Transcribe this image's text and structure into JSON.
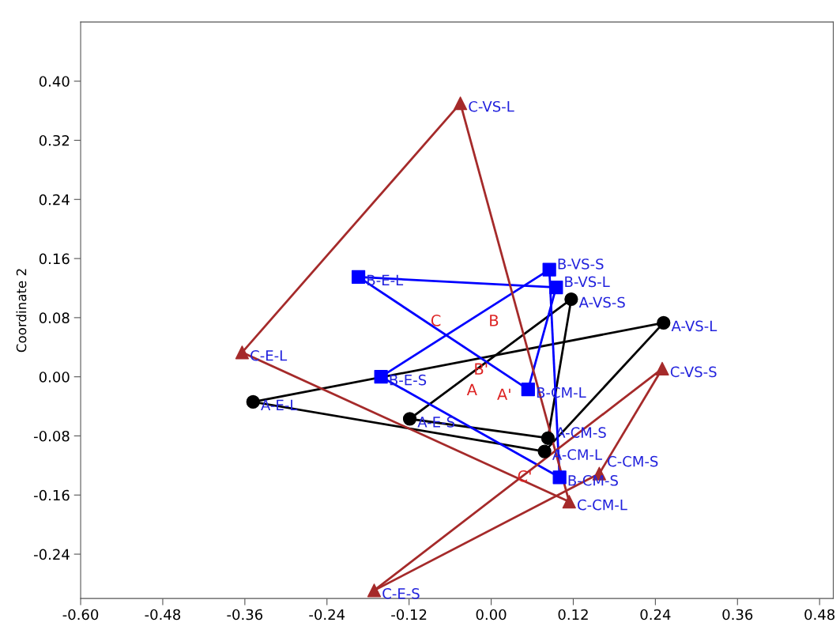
{
  "chart_data": {
    "type": "scatter",
    "ylabel": "Coordinate 2",
    "xlim": [
      -0.6,
      0.5
    ],
    "ylim": [
      -0.3,
      0.48
    ],
    "xticks": [
      {
        "value": -0.6,
        "label": "-0.60"
      },
      {
        "value": -0.48,
        "label": "-0.48"
      },
      {
        "value": -0.36,
        "label": "-0.36"
      },
      {
        "value": -0.24,
        "label": "-0.24"
      },
      {
        "value": -0.12,
        "label": "-0.12"
      },
      {
        "value": 0,
        "label": "0.00"
      },
      {
        "value": 0.12,
        "label": "0.12"
      },
      {
        "value": 0.24,
        "label": "0.24"
      },
      {
        "value": 0.36,
        "label": "0.36"
      },
      {
        "value": 0.48,
        "label": "0.48"
      }
    ],
    "yticks": [
      {
        "value": -0.24,
        "label": "-0.24"
      },
      {
        "value": -0.16,
        "label": "-0.16"
      },
      {
        "value": -0.08,
        "label": "-0.08"
      },
      {
        "value": 0,
        "label": "0.00"
      },
      {
        "value": 0.08,
        "label": "0.08"
      },
      {
        "value": 0.16,
        "label": "0.16"
      },
      {
        "value": 0.24,
        "label": "0.24"
      },
      {
        "value": 0.32,
        "label": "0.32"
      },
      {
        "value": 0.4,
        "label": "0.40"
      }
    ],
    "grid": false,
    "legend": false,
    "series": [
      {
        "type": "line",
        "marker": "none",
        "line_style": "solid",
        "color": "#000000",
        "x": [
          -0.348,
          0.252
        ],
        "values": [
          -0.034,
          0.073
        ]
      },
      {
        "type": "line",
        "marker": "none",
        "line_style": "solid",
        "color": "#000000",
        "x": [
          0.078,
          0.252
        ],
        "values": [
          -0.101,
          0.073
        ]
      },
      {
        "type": "line",
        "marker": "none",
        "line_style": "solid",
        "color": "#000000",
        "x": [
          -0.348,
          0.078
        ],
        "values": [
          -0.034,
          -0.101
        ]
      },
      {
        "type": "line",
        "marker": "none",
        "line_style": "solid",
        "color": "#000000",
        "x": [
          -0.119,
          0.117
        ],
        "values": [
          -0.057,
          0.105
        ]
      },
      {
        "type": "line",
        "marker": "none",
        "line_style": "solid",
        "color": "#000000",
        "x": [
          0.083,
          0.117
        ],
        "values": [
          -0.083,
          0.105
        ]
      },
      {
        "type": "line",
        "marker": "none",
        "line_style": "solid",
        "color": "#000000",
        "x": [
          -0.119,
          0.083
        ],
        "values": [
          -0.057,
          -0.083
        ]
      },
      {
        "type": "line",
        "marker": "none",
        "line_style": "solid",
        "color": "#0000ff",
        "x": [
          -0.194,
          0.095
        ],
        "values": [
          0.135,
          0.121
        ]
      },
      {
        "type": "line",
        "marker": "none",
        "line_style": "solid",
        "color": "#0000ff",
        "x": [
          0.054,
          0.095
        ],
        "values": [
          -0.017,
          0.121
        ]
      },
      {
        "type": "line",
        "marker": "none",
        "line_style": "solid",
        "color": "#0000ff",
        "x": [
          -0.194,
          0.054
        ],
        "values": [
          0.135,
          -0.017
        ]
      },
      {
        "type": "line",
        "marker": "none",
        "line_style": "solid",
        "color": "#0000ff",
        "x": [
          -0.161,
          0.085
        ],
        "values": [
          0.0,
          0.145
        ]
      },
      {
        "type": "line",
        "marker": "none",
        "line_style": "solid",
        "color": "#0000ff",
        "x": [
          0.085,
          0.1
        ],
        "values": [
          0.145,
          -0.136
        ]
      },
      {
        "type": "line",
        "marker": "none",
        "line_style": "solid",
        "color": "#0000ff",
        "x": [
          -0.161,
          0.1
        ],
        "values": [
          0.0,
          -0.136
        ]
      },
      {
        "type": "line",
        "marker": "none",
        "line_style": "solid",
        "color": "#a52a2a",
        "x": [
          -0.364,
          -0.045
        ],
        "values": [
          0.033,
          0.37
        ]
      },
      {
        "type": "line",
        "marker": "none",
        "line_style": "solid",
        "color": "#a52a2a",
        "x": [
          -0.045,
          0.114
        ],
        "values": [
          0.37,
          -0.169
        ]
      },
      {
        "type": "line",
        "marker": "none",
        "line_style": "solid",
        "color": "#a52a2a",
        "x": [
          -0.364,
          0.114
        ],
        "values": [
          0.033,
          -0.169
        ]
      },
      {
        "type": "line",
        "marker": "none",
        "line_style": "solid",
        "color": "#a52a2a",
        "x": [
          -0.171,
          0.25
        ],
        "values": [
          -0.289,
          0.011
        ]
      },
      {
        "type": "line",
        "marker": "none",
        "line_style": "solid",
        "color": "#a52a2a",
        "x": [
          0.158,
          0.25
        ],
        "values": [
          -0.131,
          0.011
        ]
      },
      {
        "type": "line",
        "marker": "none",
        "line_style": "solid",
        "color": "#a52a2a",
        "x": [
          -0.171,
          0.158
        ],
        "values": [
          -0.289,
          -0.131
        ]
      },
      {
        "marker": "circle",
        "color": "#000000",
        "x": [
          -0.348,
          0.252,
          0.078
        ],
        "values": [
          -0.034,
          0.073,
          -0.101
        ]
      },
      {
        "marker": "circle",
        "color": "#000000",
        "x": [
          -0.119,
          0.117,
          0.083
        ],
        "values": [
          -0.057,
          0.105,
          -0.083
        ]
      },
      {
        "marker": "square",
        "color": "#0000ff",
        "x": [
          -0.194,
          0.095,
          0.054
        ],
        "values": [
          0.135,
          0.121,
          -0.017
        ]
      },
      {
        "marker": "square",
        "color": "#0000ff",
        "x": [
          -0.161,
          0.085,
          0.1
        ],
        "values": [
          0.0,
          0.145,
          -0.136
        ]
      },
      {
        "marker": "triangle",
        "color": "#a52a2a",
        "x": [
          -0.364,
          -0.045,
          0.114
        ],
        "values": [
          0.033,
          0.37,
          -0.169
        ]
      },
      {
        "marker": "triangle",
        "color": "#a52a2a",
        "x": [
          -0.171,
          0.25,
          0.158
        ],
        "values": [
          -0.289,
          0.011,
          -0.131
        ]
      }
    ],
    "annotations": [
      {
        "text": "A-E-L",
        "x": -0.348,
        "y": -0.034
      },
      {
        "text": "A-VS-L",
        "x": 0.252,
        "y": 0.073
      },
      {
        "text": "A-CM-L",
        "x": 0.078,
        "y": -0.101
      },
      {
        "text": "A-E-S",
        "x": -0.119,
        "y": -0.057
      },
      {
        "text": "A-VS-S",
        "x": 0.117,
        "y": 0.105
      },
      {
        "text": "A-CM-S",
        "x": 0.083,
        "y": -0.083
      },
      {
        "text": "B-E-L",
        "x": -0.194,
        "y": 0.135
      },
      {
        "text": "B-VS-L",
        "x": 0.095,
        "y": 0.121
      },
      {
        "text": "B-CM-L",
        "x": 0.054,
        "y": -0.017
      },
      {
        "text": "B-E-S",
        "x": -0.161,
        "y": 0.0
      },
      {
        "text": "B-VS-S",
        "x": 0.085,
        "y": 0.145
      },
      {
        "text": "B-CM-S",
        "x": 0.1,
        "y": -0.136
      },
      {
        "text": "C-E-L",
        "x": -0.364,
        "y": 0.033
      },
      {
        "text": "C-VS-L",
        "x": -0.045,
        "y": 0.37
      },
      {
        "text": "C-CM-L",
        "x": 0.114,
        "y": -0.169
      },
      {
        "text": "C-E-S",
        "x": -0.171,
        "y": -0.289
      },
      {
        "text": "C-VS-S",
        "x": 0.25,
        "y": 0.011
      },
      {
        "text": "C-CM-S",
        "x": 0.158,
        "y": -0.131
      },
      "C",
      "B",
      "B'",
      "A",
      "A'",
      "C'"
    ]
  }
}
